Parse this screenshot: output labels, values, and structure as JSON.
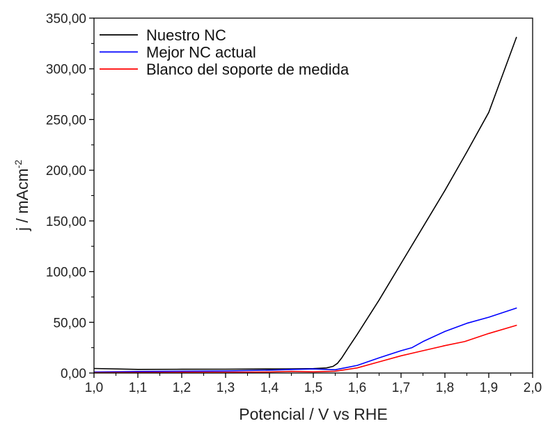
{
  "chart_data": {
    "type": "line",
    "xlabel": "Potencial / V vs RHE",
    "ylabel_main": "j / mAcm",
    "ylabel_sup": "-2",
    "xlim": [
      1.0,
      2.0
    ],
    "ylim": [
      0,
      350
    ],
    "x_ticks": [
      1.0,
      1.1,
      1.2,
      1.3,
      1.4,
      1.5,
      1.6,
      1.7,
      1.8,
      1.9,
      2.0
    ],
    "x_tick_labels": [
      "1,0",
      "1,1",
      "1,2",
      "1,3",
      "1,4",
      "1,5",
      "1,6",
      "1,7",
      "1,8",
      "1,9",
      "2,0"
    ],
    "y_ticks": [
      0,
      50,
      100,
      150,
      200,
      250,
      300,
      350
    ],
    "y_tick_labels": [
      "0,00",
      "50,00",
      "100,00",
      "150,00",
      "200,00",
      "250,00",
      "300,00",
      "350,00"
    ],
    "grid": false,
    "legend_position": "top-left",
    "series": [
      {
        "name": "Nuestro NC",
        "color": "#000000",
        "x": [
          1.0,
          1.1,
          1.2,
          1.3,
          1.4,
          1.45,
          1.5,
          1.53,
          1.545,
          1.555,
          1.565,
          1.58,
          1.6,
          1.65,
          1.7,
          1.75,
          1.8,
          1.85,
          1.9,
          1.963
        ],
        "y": [
          4.5,
          3.6,
          3.7,
          3.8,
          4.0,
          4.1,
          4.3,
          5.0,
          6.5,
          9.5,
          15,
          25,
          38,
          72,
          108,
          144,
          180,
          218,
          257,
          331
        ]
      },
      {
        "name": "Mejor NC actual",
        "color": "#0000ff",
        "x": [
          1.0,
          1.1,
          1.2,
          1.3,
          1.4,
          1.45,
          1.5,
          1.55,
          1.6,
          1.65,
          1.7,
          1.725,
          1.75,
          1.8,
          1.85,
          1.9,
          1.963
        ],
        "y": [
          1.0,
          1.5,
          1.8,
          2.0,
          2.8,
          3.5,
          4.0,
          3.2,
          7.5,
          15,
          22,
          25,
          31,
          41,
          49,
          55,
          64
        ]
      },
      {
        "name": "Blanco del soporte de medida",
        "color": "#ff0000",
        "x": [
          1.0,
          1.1,
          1.2,
          1.3,
          1.4,
          1.45,
          1.5,
          1.55,
          1.6,
          1.65,
          1.7,
          1.75,
          1.8,
          1.845,
          1.9,
          1.963
        ],
        "y": [
          0.3,
          0.5,
          0.6,
          0.7,
          1.0,
          1.6,
          1.2,
          1.8,
          5.0,
          11,
          17,
          22,
          27,
          31,
          39,
          47
        ]
      }
    ]
  }
}
